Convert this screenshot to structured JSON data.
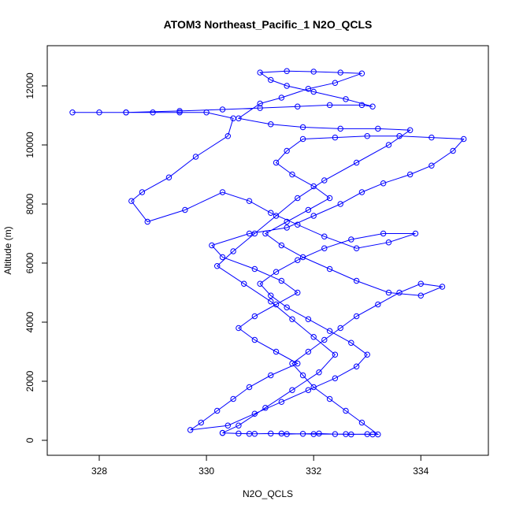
{
  "chart_data": {
    "type": "scatter",
    "lines": true,
    "title": "ATOM3 Northeast_Pacific_1 N2O_QCLS",
    "x_label": "N2O_QCLS",
    "y_label": "Altitude (m)",
    "xlim": [
      327.03,
      335.26
    ],
    "ylim": [
      -507,
      13360
    ],
    "xticks": [
      328,
      330,
      332,
      334
    ],
    "yticks": [
      0,
      2000,
      4000,
      6000,
      8000,
      10000,
      12000
    ],
    "series": [
      {
        "color": "#0000ff",
        "x": [
          330.3,
          330.6,
          330.9,
          331.2,
          331.5,
          331.8,
          332.1,
          332.4,
          332.7,
          333.0,
          333.2,
          332.9,
          332.6,
          332.3,
          332.0,
          331.8,
          331.6,
          331.9,
          332.2,
          332.5,
          332.8,
          333.2,
          333.6,
          334.0,
          334.4,
          334.0,
          333.4,
          332.8,
          332.3,
          331.8,
          331.4,
          331.1,
          331.5,
          331.9,
          332.3,
          332.0,
          331.6,
          331.3,
          331.5,
          331.8,
          332.4,
          333.0,
          333.6,
          334.2,
          334.8,
          334.6,
          334.2,
          333.8,
          333.3,
          332.9,
          332.5,
          332.0,
          331.5,
          330.8,
          330.1,
          330.3,
          330.9,
          331.4,
          331.7,
          331.3,
          330.9,
          330.6,
          330.9,
          331.3,
          331.7,
          331.2,
          330.8,
          330.5,
          330.2,
          329.9,
          329.7,
          330.4,
          330.9,
          331.4,
          331.9,
          332.4,
          332.8,
          333.0,
          332.7,
          332.3,
          331.9,
          331.5,
          331.2,
          331.0,
          331.3,
          331.7,
          332.2,
          332.7,
          333.3,
          333.9,
          333.4,
          332.8,
          332.2,
          331.7,
          331.2,
          330.8,
          330.3,
          329.6,
          328.9,
          328.6,
          328.8,
          329.3,
          329.8,
          330.4,
          330.5,
          330.0,
          329.5,
          329.0,
          328.5,
          328.0,
          327.5,
          328.5,
          329.5,
          330.3,
          331.0,
          331.7,
          332.3,
          332.9,
          333.1,
          332.6,
          332.0,
          331.5,
          331.2,
          331.0,
          331.5,
          332.0,
          332.5,
          332.9,
          332.4,
          331.9,
          331.4,
          331.0,
          330.6,
          331.2,
          331.8,
          332.5,
          333.2,
          333.8,
          333.4,
          332.8,
          332.2,
          331.7,
          331.3,
          330.9,
          330.5,
          330.2,
          330.7,
          331.2,
          331.6,
          332.0,
          332.4,
          332.1,
          331.6,
          331.1,
          330.6,
          330.3,
          330.8,
          331.4,
          332.0,
          332.6,
          333.1
        ],
        "values": [
          250,
          230,
          220,
          230,
          210,
          220,
          230,
          210,
          200,
          210,
          200,
          600,
          1000,
          1400,
          1800,
          2200,
          2600,
          3000,
          3400,
          3800,
          4200,
          4600,
          5000,
          5300,
          5200,
          4900,
          5000,
          5400,
          5800,
          6200,
          6600,
          7000,
          7400,
          7800,
          8200,
          8600,
          9000,
          9400,
          9800,
          10200,
          10250,
          10300,
          10300,
          10250,
          10200,
          9800,
          9300,
          9000,
          8700,
          8400,
          8000,
          7600,
          7200,
          7000,
          6600,
          6200,
          5800,
          5400,
          5000,
          4600,
          4200,
          3800,
          3400,
          3000,
          2600,
          2200,
          1800,
          1400,
          1000,
          600,
          350,
          500,
          900,
          1300,
          1700,
          2100,
          2500,
          2900,
          3300,
          3700,
          4100,
          4500,
          4900,
          5300,
          5700,
          6100,
          6500,
          6800,
          7000,
          7000,
          6700,
          6500,
          6900,
          7300,
          7700,
          8100,
          8400,
          7800,
          7400,
          8100,
          8400,
          8900,
          9600,
          10300,
          10900,
          11100,
          11100,
          11100,
          11100,
          11100,
          11100,
          11100,
          11150,
          11200,
          11250,
          11300,
          11350,
          11350,
          11300,
          11550,
          11800,
          12000,
          12200,
          12450,
          12500,
          12480,
          12450,
          12420,
          12100,
          11900,
          11600,
          11400,
          10900,
          10700,
          10600,
          10550,
          10550,
          10500,
          10000,
          9400,
          8800,
          8200,
          7600,
          7000,
          6400,
          5900,
          5300,
          4700,
          4100,
          3500,
          2900,
          2300,
          1700,
          1100,
          500,
          250,
          220,
          230,
          210,
          210,
          200
        ]
      }
    ]
  }
}
